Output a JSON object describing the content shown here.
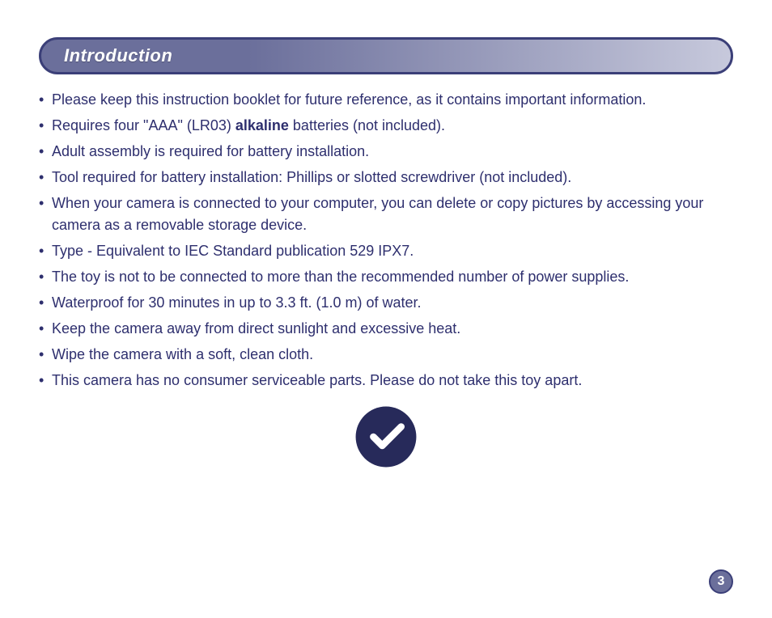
{
  "colors": {
    "header_gradient_left": "#6b6f9b",
    "header_gradient_right": "#c7c9dc",
    "header_border": "#3b3f78",
    "body_text": "#2e2f6e",
    "checkmark_bg": "#272a5a",
    "checkmark_fg": "#ffffff",
    "pagenum_bg": "#6b6f9b",
    "pagenum_border": "#3b3f78"
  },
  "typography": {
    "title_fontsize": 22,
    "bullet_fontsize": 18,
    "body_line_height": 1.55,
    "font_family": "Segoe UI, Helvetica Neue, Arial, sans-serif"
  },
  "header": {
    "title": "Introduction"
  },
  "bullets": [
    {
      "text_prefix": "Please keep this instruction booklet for future reference, as it contains important information.",
      "bold": "",
      "text_suffix": ""
    },
    {
      "text_prefix": "Requires four \"AAA\" (LR03) ",
      "bold": "alkaline",
      "text_suffix": " batteries (not included)."
    },
    {
      "text_prefix": "Adult assembly is required for battery installation.",
      "bold": "",
      "text_suffix": ""
    },
    {
      "text_prefix": "Tool required for battery installation: Phillips or slotted screwdriver (not included).",
      "bold": "",
      "text_suffix": ""
    },
    {
      "text_prefix": "When your camera is connected to your computer, you can delete or copy pictures by accessing your camera as a removable storage device.",
      "bold": "",
      "text_suffix": ""
    },
    {
      "text_prefix": "Type - Equivalent to IEC Standard publication 529 IPX7.",
      "bold": "",
      "text_suffix": ""
    },
    {
      "text_prefix": "The toy is not to be connected to more than the recommended number of power supplies.",
      "bold": "",
      "text_suffix": ""
    },
    {
      "text_prefix": "Waterproof for 30 minutes in up to 3.3 ft. (1.0 m) of water.",
      "bold": "",
      "text_suffix": ""
    },
    {
      "text_prefix": "Keep the camera away from direct sunlight and excessive heat.",
      "bold": "",
      "text_suffix": ""
    },
    {
      "text_prefix": "Wipe the camera with a soft, clean cloth.",
      "bold": "",
      "text_suffix": ""
    },
    {
      "text_prefix": "This camera has no consumer serviceable parts. Please do not take this toy apart.",
      "bold": "",
      "text_suffix": ""
    }
  ],
  "page_number": "3"
}
